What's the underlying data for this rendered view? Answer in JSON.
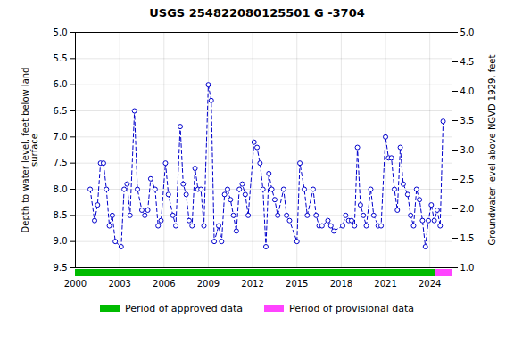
{
  "chart_data": {
    "type": "line",
    "title": "USGS 254822080125501 G  -3704",
    "ylabel": "Depth to water level, feet below land\nsurface",
    "y2label": "Groundwater level above NGVD 1929, feet",
    "x": [
      2001.0,
      2001.3,
      2001.5,
      2001.7,
      2001.9,
      2002.1,
      2002.3,
      2002.5,
      2002.7,
      2003.1,
      2003.3,
      2003.5,
      2003.7,
      2004.0,
      2004.2,
      2004.5,
      2004.7,
      2004.9,
      2005.1,
      2005.4,
      2005.6,
      2005.8,
      2006.1,
      2006.3,
      2006.6,
      2006.8,
      2007.1,
      2007.3,
      2007.5,
      2007.7,
      2007.9,
      2008.1,
      2008.3,
      2008.5,
      2008.7,
      2009.0,
      2009.2,
      2009.4,
      2009.7,
      2009.9,
      2010.1,
      2010.3,
      2010.5,
      2010.7,
      2010.9,
      2011.1,
      2011.3,
      2011.5,
      2011.7,
      2012.1,
      2012.3,
      2012.5,
      2012.7,
      2012.9,
      2013.1,
      2013.3,
      2013.5,
      2013.7,
      2014.1,
      2014.3,
      2014.5,
      2015.0,
      2015.2,
      2015.5,
      2015.7,
      2016.1,
      2016.3,
      2016.5,
      2016.7,
      2017.1,
      2017.3,
      2017.5,
      2018.1,
      2018.3,
      2018.5,
      2018.7,
      2018.9,
      2019.1,
      2019.3,
      2019.5,
      2019.7,
      2020.0,
      2020.2,
      2020.5,
      2020.7,
      2021.0,
      2021.2,
      2021.4,
      2021.6,
      2021.8,
      2022.0,
      2022.2,
      2022.5,
      2022.7,
      2022.9,
      2023.1,
      2023.3,
      2023.5,
      2023.7,
      2023.9,
      2024.1,
      2024.3,
      2024.5,
      2024.7,
      2024.9
    ],
    "values": [
      8.0,
      8.6,
      8.3,
      7.5,
      7.5,
      8.0,
      8.7,
      8.5,
      9.0,
      9.1,
      8.0,
      7.9,
      8.5,
      6.5,
      8.0,
      8.4,
      8.5,
      8.4,
      7.8,
      8.0,
      8.7,
      8.6,
      7.5,
      8.1,
      8.5,
      8.7,
      6.8,
      7.9,
      8.1,
      8.6,
      8.7,
      7.6,
      8.0,
      8.0,
      8.7,
      6.0,
      6.3,
      9.0,
      8.7,
      9.0,
      8.1,
      8.0,
      8.2,
      8.5,
      8.8,
      8.0,
      7.9,
      8.1,
      8.5,
      7.1,
      7.2,
      7.5,
      8.0,
      9.1,
      7.7,
      8.0,
      8.2,
      8.5,
      8.0,
      8.5,
      8.6,
      9.0,
      7.5,
      8.0,
      8.5,
      8.0,
      8.5,
      8.7,
      8.7,
      8.6,
      8.7,
      8.8,
      8.7,
      8.5,
      8.6,
      8.6,
      8.7,
      7.2,
      8.3,
      8.5,
      8.7,
      8.0,
      8.5,
      8.7,
      8.7,
      7.0,
      7.4,
      7.4,
      8.0,
      8.4,
      7.2,
      7.9,
      8.1,
      8.5,
      8.7,
      8.0,
      8.2,
      8.6,
      9.1,
      8.6,
      8.3,
      8.6,
      8.4,
      8.7,
      6.7
    ],
    "color": "#0000CC",
    "line_style": "dashed",
    "marker": "circle",
    "xlim": [
      2000,
      2025.5
    ],
    "xticks": [
      2000,
      2003,
      2006,
      2009,
      2012,
      2015,
      2018,
      2021,
      2024
    ],
    "ylim": [
      9.5,
      5.0
    ],
    "yticks": [
      {
        "value": 5.0,
        "label": "5.0"
      },
      5.5,
      {
        "value": 6.0,
        "label": "6.0"
      },
      6.5,
      {
        "value": 7.0,
        "label": "7.0"
      },
      7.5,
      {
        "value": 8.0,
        "label": "8.0"
      },
      8.5,
      {
        "value": 9.0,
        "label": "9.0"
      },
      9.5
    ],
    "y2lim": [
      1.0,
      5.0
    ],
    "y2ticks": [
      {
        "value": 5.0,
        "label": "5.0"
      },
      4.5,
      {
        "value": 4.0,
        "label": "4.0"
      },
      3.5,
      {
        "value": 3.0,
        "label": "3.0"
      },
      2.5,
      {
        "value": 2.0,
        "label": "2.0"
      },
      1.5,
      {
        "value": 1.0,
        "label": "1.0"
      }
    ],
    "grid": true,
    "legend": "bottom",
    "periods": [
      {
        "name": "Period of approved data",
        "color": "#00BB00",
        "start": 2000.0,
        "end": 2024.4
      },
      {
        "name": "Period of provisional data",
        "color": "#FF44FF",
        "start": 2024.4,
        "end": 2025.5
      }
    ]
  }
}
